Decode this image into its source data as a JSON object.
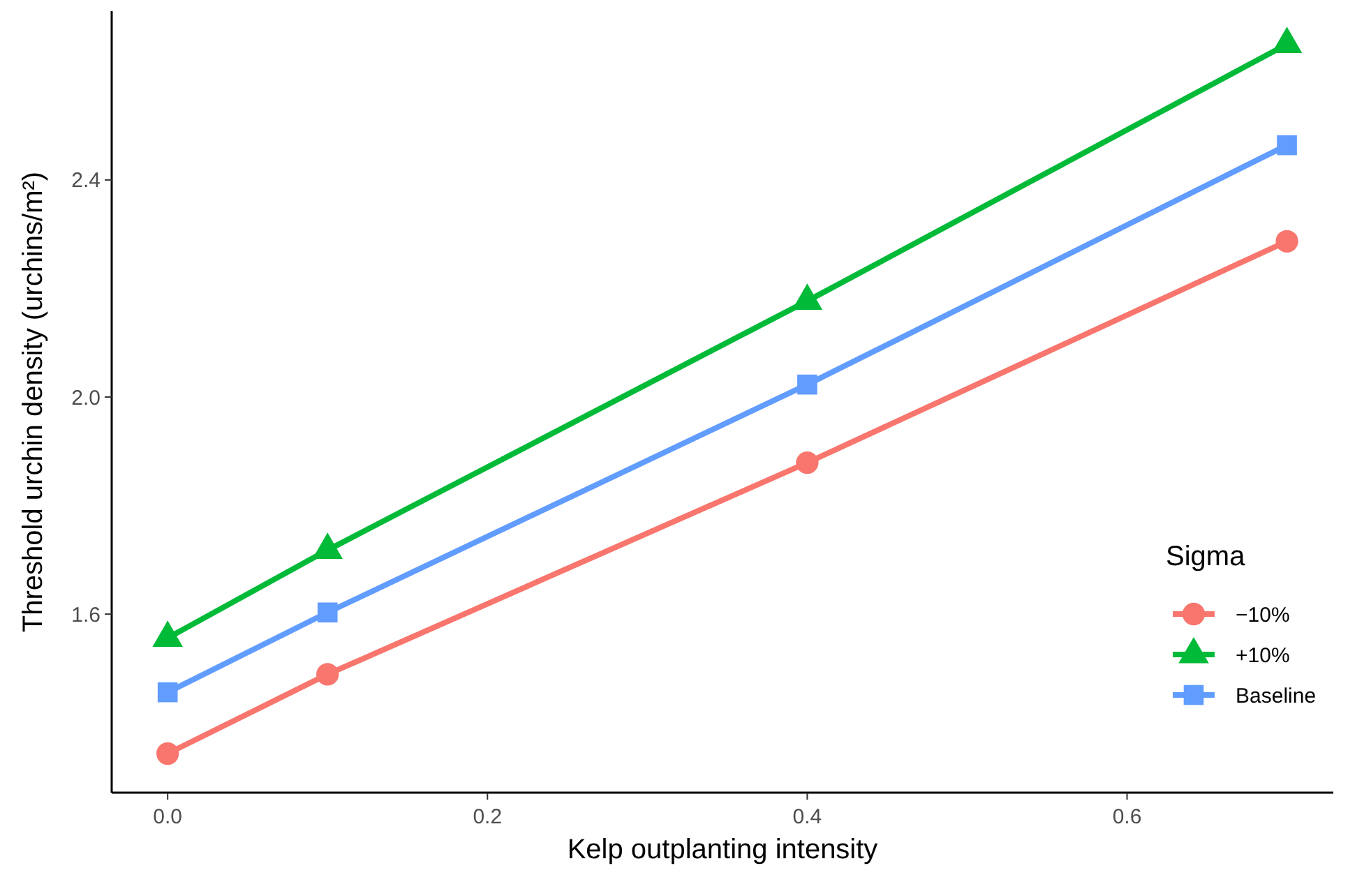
{
  "chart_data": {
    "type": "line",
    "xlabel": "Kelp outplanting intensity",
    "ylabel": "Threshold urchin density (urchins/m²)",
    "legend_title": "Sigma",
    "legend": "right",
    "grid": false,
    "line_style": "solid",
    "x": [
      0,
      0.1,
      0.4,
      0.7
    ],
    "xlim": [
      -0.035,
      0.729
    ],
    "xticks": [
      {
        "value": 0,
        "label": "0.0"
      },
      0.2,
      0.4,
      0.6
    ],
    "ylim": [
      1.271,
      2.711
    ],
    "yticks": [
      1.6,
      {
        "value": 2,
        "label": "2.0"
      },
      2.4
    ],
    "series": [
      {
        "name": "−10%",
        "color": "#f8766d",
        "marker": "circle",
        "values": [
          1.343,
          1.489,
          1.879,
          2.287
        ]
      },
      {
        "name": "+10%",
        "color": "#00ba38",
        "marker": "triangle",
        "values": [
          1.556,
          1.718,
          2.177,
          2.65
        ]
      },
      {
        "name": "Baseline",
        "color": "#619cff",
        "marker": "square",
        "values": [
          1.456,
          1.603,
          2.023,
          2.464
        ]
      }
    ]
  }
}
